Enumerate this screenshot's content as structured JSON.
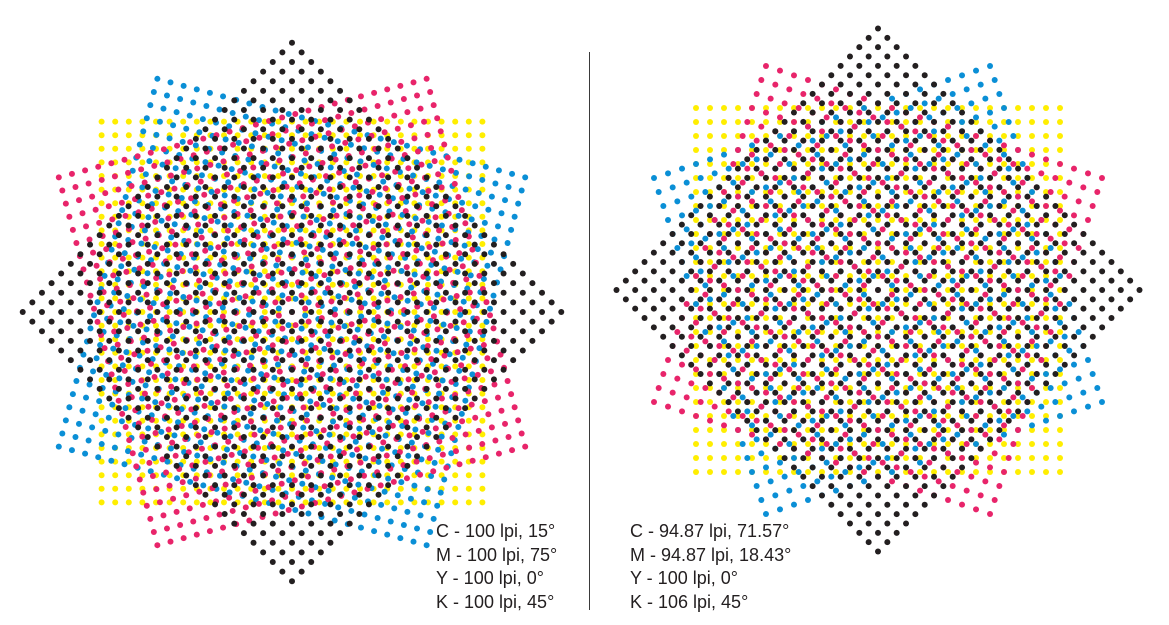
{
  "colors": {
    "cyan": "#0a8fd6",
    "magenta": "#e8246a",
    "yellow": "#ffee00",
    "black": "#231f20"
  },
  "panels": [
    {
      "id": "left",
      "screens": [
        {
          "ink": "cyan",
          "lpi": 100,
          "angle": 15
        },
        {
          "ink": "magenta",
          "lpi": 100,
          "angle": 75
        },
        {
          "ink": "yellow",
          "lpi": 100,
          "angle": 0
        },
        {
          "ink": "black",
          "lpi": 100,
          "angle": 45
        }
      ],
      "legend": [
        "C - 100 lpi, 15°",
        "M - 100 lpi, 75°",
        "Y - 100 lpi, 0°",
        "K - 100 lpi, 45°"
      ]
    },
    {
      "id": "right",
      "screens": [
        {
          "ink": "cyan",
          "lpi": 94.87,
          "angle": 71.57
        },
        {
          "ink": "magenta",
          "lpi": 94.87,
          "angle": 18.43
        },
        {
          "ink": "yellow",
          "lpi": 100,
          "angle": 0
        },
        {
          "ink": "black",
          "lpi": 106,
          "angle": 45
        }
      ],
      "legend": [
        "C - 94.87 lpi, 71.57°",
        "M - 94.87 lpi, 18.43°",
        "Y - 100 lpi, 0°",
        "K - 106 lpi, 45°"
      ]
    }
  ]
}
